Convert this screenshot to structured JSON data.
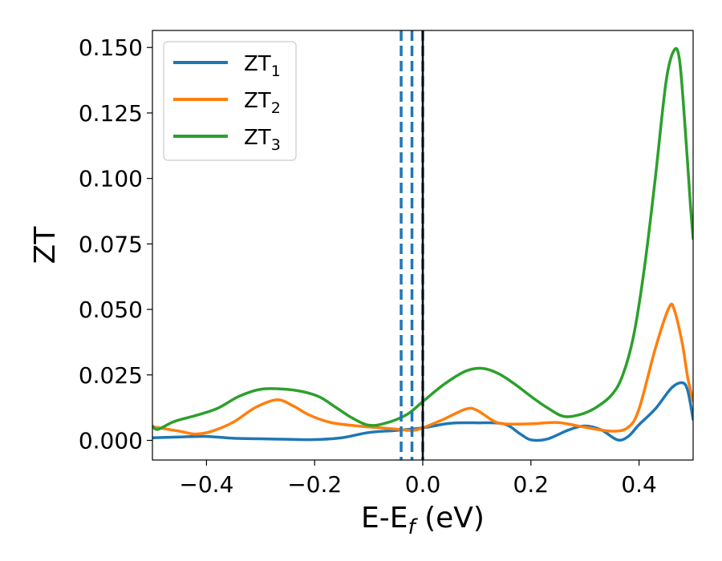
{
  "chart_data": {
    "type": "line",
    "xlabel": {
      "main": "E-E",
      "sub": "f",
      "suffix": " (eV)"
    },
    "ylabel": "ZT",
    "xlim": [
      -0.5,
      0.5
    ],
    "ylim": [
      -0.0075,
      0.1565
    ],
    "xticks": [
      -0.4,
      -0.2,
      0.0,
      0.2,
      0.4
    ],
    "xtick_labels": [
      "−0.4",
      "−0.2",
      "0.0",
      "0.2",
      "0.4"
    ],
    "yticks": [
      0.0,
      0.025,
      0.05,
      0.075,
      0.1,
      0.125,
      0.15
    ],
    "ytick_labels": [
      "0.000",
      "0.025",
      "0.050",
      "0.075",
      "0.100",
      "0.125",
      "0.150"
    ],
    "grid": false,
    "legend_position": "top-left",
    "vlines": [
      {
        "x": -0.04,
        "style": "dashed",
        "color": "#1f77b4"
      },
      {
        "x": -0.02,
        "style": "dashed",
        "color": "#1f77b4"
      },
      {
        "x": 0.0,
        "style": "dashed",
        "color": "#1f77b4"
      },
      {
        "x": 0.0,
        "style": "solid",
        "color": "#000000"
      }
    ],
    "series": [
      {
        "name": "ZT",
        "sub": "1",
        "color": "#1f77b4",
        "points": [
          [
            -0.5,
            0.001
          ],
          [
            -0.45,
            0.0013
          ],
          [
            -0.4,
            0.0015
          ],
          [
            -0.35,
            0.0008
          ],
          [
            -0.3,
            0.0006
          ],
          [
            -0.25,
            0.0004
          ],
          [
            -0.2,
            0.0003
          ],
          [
            -0.15,
            0.001
          ],
          [
            -0.1,
            0.003
          ],
          [
            -0.05,
            0.0038
          ],
          [
            0.0,
            0.0048
          ],
          [
            0.05,
            0.0065
          ],
          [
            0.1,
            0.0067
          ],
          [
            0.15,
            0.0063
          ],
          [
            0.18,
            0.0025
          ],
          [
            0.2,
            0.0002
          ],
          [
            0.23,
            0.0005
          ],
          [
            0.27,
            0.004
          ],
          [
            0.3,
            0.0055
          ],
          [
            0.33,
            0.004
          ],
          [
            0.36,
            0.0002
          ],
          [
            0.38,
            0.0015
          ],
          [
            0.4,
            0.006
          ],
          [
            0.43,
            0.012
          ],
          [
            0.46,
            0.02
          ],
          [
            0.48,
            0.022
          ],
          [
            0.49,
            0.019
          ],
          [
            0.5,
            0.008
          ]
        ]
      },
      {
        "name": "ZT",
        "sub": "2",
        "color": "#ff7f0e",
        "points": [
          [
            -0.5,
            0.0052
          ],
          [
            -0.45,
            0.0035
          ],
          [
            -0.42,
            0.0024
          ],
          [
            -0.39,
            0.0035
          ],
          [
            -0.35,
            0.007
          ],
          [
            -0.31,
            0.0125
          ],
          [
            -0.27,
            0.0155
          ],
          [
            -0.24,
            0.0132
          ],
          [
            -0.21,
            0.0097
          ],
          [
            -0.17,
            0.0068
          ],
          [
            -0.12,
            0.0055
          ],
          [
            -0.08,
            0.0048
          ],
          [
            -0.05,
            0.0043
          ],
          [
            -0.02,
            0.0038
          ],
          [
            0.0,
            0.0048
          ],
          [
            0.04,
            0.0082
          ],
          [
            0.08,
            0.012
          ],
          [
            0.1,
            0.0115
          ],
          [
            0.13,
            0.0075
          ],
          [
            0.15,
            0.0063
          ],
          [
            0.2,
            0.0063
          ],
          [
            0.25,
            0.0068
          ],
          [
            0.3,
            0.005
          ],
          [
            0.35,
            0.0035
          ],
          [
            0.38,
            0.005
          ],
          [
            0.4,
            0.012
          ],
          [
            0.43,
            0.035
          ],
          [
            0.455,
            0.0505
          ],
          [
            0.465,
            0.05
          ],
          [
            0.48,
            0.037
          ],
          [
            0.49,
            0.024
          ],
          [
            0.5,
            0.015
          ]
        ]
      },
      {
        "name": "ZT",
        "sub": "3",
        "color": "#2ca02c",
        "points": [
          [
            -0.5,
            0.0055
          ],
          [
            -0.49,
            0.0042
          ],
          [
            -0.46,
            0.0072
          ],
          [
            -0.42,
            0.0095
          ],
          [
            -0.38,
            0.0122
          ],
          [
            -0.34,
            0.0168
          ],
          [
            -0.3,
            0.0195
          ],
          [
            -0.26,
            0.0196
          ],
          [
            -0.22,
            0.0185
          ],
          [
            -0.19,
            0.0165
          ],
          [
            -0.16,
            0.0125
          ],
          [
            -0.13,
            0.0085
          ],
          [
            -0.1,
            0.0058
          ],
          [
            -0.07,
            0.0065
          ],
          [
            -0.03,
            0.0098
          ],
          [
            0.0,
            0.0148
          ],
          [
            0.04,
            0.0215
          ],
          [
            0.08,
            0.0265
          ],
          [
            0.11,
            0.0275
          ],
          [
            0.14,
            0.0255
          ],
          [
            0.17,
            0.0215
          ],
          [
            0.2,
            0.0168
          ],
          [
            0.23,
            0.0125
          ],
          [
            0.26,
            0.0092
          ],
          [
            0.29,
            0.0098
          ],
          [
            0.32,
            0.0125
          ],
          [
            0.35,
            0.0175
          ],
          [
            0.37,
            0.025
          ],
          [
            0.39,
            0.04
          ],
          [
            0.41,
            0.066
          ],
          [
            0.43,
            0.1
          ],
          [
            0.45,
            0.137
          ],
          [
            0.465,
            0.149
          ],
          [
            0.475,
            0.145
          ],
          [
            0.485,
            0.12
          ],
          [
            0.495,
            0.09
          ],
          [
            0.5,
            0.077
          ]
        ]
      }
    ]
  }
}
